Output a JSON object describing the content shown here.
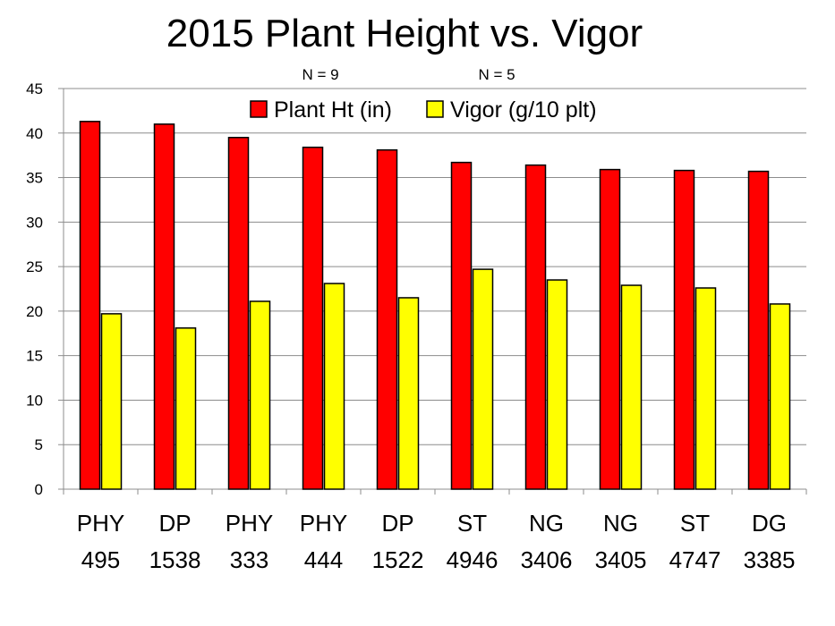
{
  "chart_data": {
    "type": "bar",
    "title": "2015 Plant Height vs. Vigor",
    "annotations": [
      "N = 9",
      "N = 5"
    ],
    "categories": [
      [
        "PHY",
        "495"
      ],
      [
        "DP",
        "1538"
      ],
      [
        "PHY",
        "333"
      ],
      [
        "PHY",
        "444"
      ],
      [
        "DP",
        "1522"
      ],
      [
        "ST",
        "4946"
      ],
      [
        "NG",
        "3406"
      ],
      [
        "NG",
        "3405"
      ],
      [
        "ST",
        "4747"
      ],
      [
        "DG",
        "3385"
      ]
    ],
    "series": [
      {
        "name": "Plant Ht (in)",
        "color": "#ff0000",
        "values": [
          41.3,
          41.0,
          39.5,
          38.4,
          38.1,
          36.7,
          36.4,
          35.9,
          35.8,
          35.7
        ]
      },
      {
        "name": "Vigor (g/10 plt)",
        "color": "#ffff00",
        "values": [
          19.7,
          18.1,
          21.1,
          23.1,
          21.5,
          24.7,
          23.5,
          22.9,
          22.6,
          20.8
        ]
      }
    ],
    "ylim": [
      0,
      45
    ],
    "yticks": [
      0,
      5,
      10,
      15,
      20,
      25,
      30,
      35,
      40,
      45
    ],
    "grid": true,
    "legend_position": "top"
  }
}
